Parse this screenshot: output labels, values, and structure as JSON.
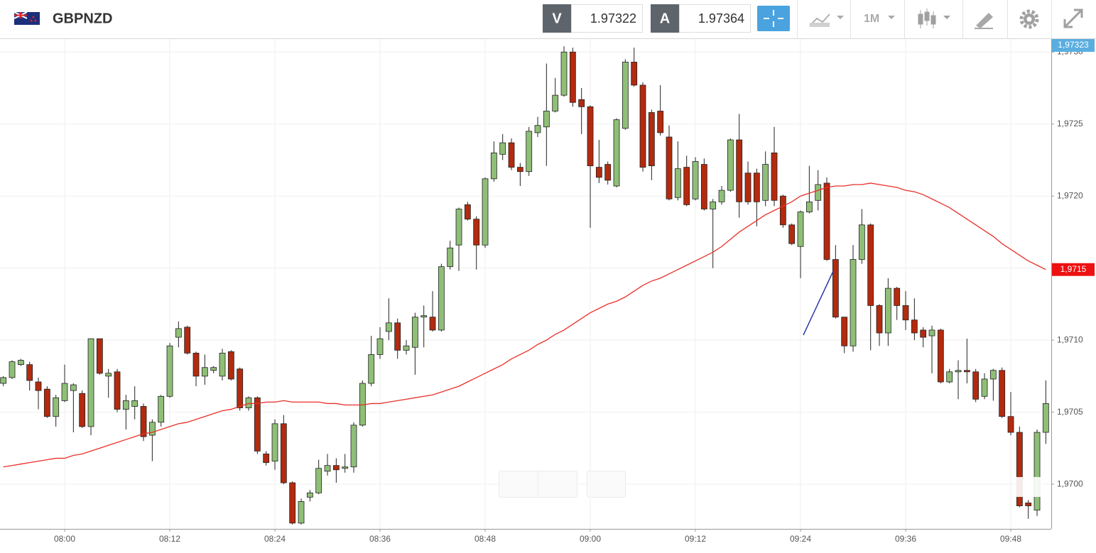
{
  "header": {
    "symbol": "GBPNZD",
    "sell_label": "V",
    "sell_price": "1.97322",
    "buy_label": "A",
    "buy_price": "1.97364",
    "timeframe": "1M"
  },
  "chart_data": {
    "type": "candlestick",
    "x": [
      "07:53",
      "07:54",
      "07:55",
      "07:56",
      "07:57",
      "07:58",
      "07:59",
      "08:00",
      "08:01",
      "08:02",
      "08:03",
      "08:04",
      "08:05",
      "08:06",
      "08:07",
      "08:08",
      "08:09",
      "08:10",
      "08:11",
      "08:12",
      "08:13",
      "08:14",
      "08:15",
      "08:16",
      "08:17",
      "08:18",
      "08:19",
      "08:20",
      "08:21",
      "08:22",
      "08:23",
      "08:24",
      "08:25",
      "08:26",
      "08:27",
      "08:28",
      "08:29",
      "08:30",
      "08:31",
      "08:32",
      "08:33",
      "08:34",
      "08:35",
      "08:36",
      "08:37",
      "08:38",
      "08:39",
      "08:40",
      "08:41",
      "08:42",
      "08:43",
      "08:44",
      "08:45",
      "08:46",
      "08:47",
      "08:48",
      "08:49",
      "08:50",
      "08:51",
      "08:52",
      "08:53",
      "08:54",
      "08:55",
      "08:56",
      "08:57",
      "08:58",
      "08:59",
      "09:00",
      "09:01",
      "09:02",
      "09:03",
      "09:04",
      "09:05",
      "09:06",
      "09:07",
      "09:08",
      "09:09",
      "09:10",
      "09:11",
      "09:12",
      "09:13",
      "09:14",
      "09:15",
      "09:16",
      "09:17",
      "09:18",
      "09:19",
      "09:20",
      "09:21",
      "09:22",
      "09:23",
      "09:24",
      "09:25",
      "09:26",
      "09:27",
      "09:28",
      "09:29",
      "09:30",
      "09:31",
      "09:32",
      "09:33",
      "09:34",
      "09:35",
      "09:36",
      "09:37",
      "09:38",
      "09:39",
      "09:40",
      "09:41",
      "09:42",
      "09:43",
      "09:44",
      "09:45",
      "09:46",
      "09:47",
      "09:48",
      "09:49",
      "09:50",
      "09:51",
      "09:52"
    ],
    "open": [
      1.9707,
      1.97074,
      1.97083,
      1.97083,
      1.97071,
      1.97066,
      1.97047,
      1.97058,
      1.97065,
      1.97063,
      1.9704,
      1.97101,
      1.97075,
      1.97078,
      1.97052,
      1.97054,
      1.97054,
      1.97034,
      1.97043,
      1.97061,
      1.97102,
      1.97109,
      1.97091,
      1.97075,
      1.97079,
      1.97075,
      1.97092,
      1.9708,
      1.97053,
      1.9706,
      1.97021,
      1.97016,
      1.97042,
      1.97001,
      1.96973,
      1.96991,
      1.96994,
      1.97009,
      1.97013,
      1.97011,
      1.97012,
      1.97041,
      1.9707,
      1.9709,
      1.97106,
      1.97112,
      1.97093,
      1.97095,
      1.97116,
      1.97116,
      1.97107,
      1.97151,
      1.97166,
      1.97194,
      1.97184,
      1.97166,
      1.97212,
      1.97229,
      1.97237,
      1.9722,
      1.97217,
      1.97244,
      1.97248,
      1.97259,
      1.9727,
      1.973,
      1.97267,
      1.97262,
      1.9722,
      1.97222,
      1.97207,
      1.97247,
      1.97293,
      1.97277,
      1.97258,
      1.97259,
      1.97241,
      1.97199,
      1.9722,
      1.97198,
      1.97222,
      1.97191,
      1.97196,
      1.97204,
      1.97239,
      1.97216,
      1.97216,
      1.97197,
      1.9723,
      1.972,
      1.9718,
      1.97165,
      1.97189,
      1.97197,
      1.97209,
      1.97156,
      1.97116,
      1.97096,
      1.97156,
      1.9718,
      1.97124,
      1.97105,
      1.97136,
      1.97124,
      1.97114,
      1.97107,
      1.97103,
      1.97107,
      1.97071,
      1.97078,
      1.97079,
      1.97078,
      1.97061,
      1.97073,
      1.97079,
      1.97047,
      1.97036,
      1.96987,
      1.96982,
      1.97036
    ],
    "high": [
      1.97075,
      1.97086,
      1.97087,
      1.97085,
      1.97074,
      1.97068,
      1.97062,
      1.97083,
      1.9707,
      1.97065,
      1.97101,
      1.97101,
      1.9708,
      1.9708,
      1.97062,
      1.97068,
      1.97056,
      1.97045,
      1.97062,
      1.97098,
      1.97113,
      1.9711,
      1.97092,
      1.9709,
      1.97082,
      1.97094,
      1.97093,
      1.97081,
      1.97061,
      1.97061,
      1.97023,
      1.97045,
      1.97048,
      1.97002,
      1.9699,
      1.96996,
      1.97017,
      1.97021,
      1.97018,
      1.97021,
      1.97043,
      1.97072,
      1.97103,
      1.97109,
      1.97129,
      1.97115,
      1.971,
      1.97119,
      1.97124,
      1.97134,
      1.97153,
      1.97169,
      1.97192,
      1.97196,
      1.97186,
      1.97213,
      1.97238,
      1.97243,
      1.9724,
      1.97223,
      1.97248,
      1.97255,
      1.97292,
      1.97282,
      1.97304,
      1.97303,
      1.97275,
      1.97263,
      1.97239,
      1.97224,
      1.97254,
      1.97295,
      1.97303,
      1.97279,
      1.9726,
      1.97277,
      1.97249,
      1.97238,
      1.97228,
      1.97227,
      1.97226,
      1.97198,
      1.97207,
      1.9724,
      1.97257,
      1.97224,
      1.97219,
      1.97231,
      1.97248,
      1.97201,
      1.97181,
      1.9719,
      1.97221,
      1.97218,
      1.97213,
      1.97166,
      1.97116,
      1.97166,
      1.97191,
      1.97181,
      1.97125,
      1.97143,
      1.97137,
      1.97134,
      1.97129,
      1.97109,
      1.9711,
      1.97108,
      1.9708,
      1.97086,
      1.97101,
      1.9708,
      1.97077,
      1.9708,
      1.97081,
      1.97064,
      1.9704,
      1.96989,
      1.97038,
      1.97072
    ],
    "low": [
      1.97068,
      1.97073,
      1.97082,
      1.97065,
      1.97052,
      1.97046,
      1.9704,
      1.97057,
      1.97036,
      1.97039,
      1.97034,
      1.97076,
      1.9706,
      1.9705,
      1.97038,
      1.97045,
      1.9703,
      1.97016,
      1.9704,
      1.9706,
      1.97095,
      1.9709,
      1.97068,
      1.97069,
      1.97077,
      1.97072,
      1.97072,
      1.97051,
      1.97051,
      1.97021,
      1.97013,
      1.9701,
      1.97,
      1.96972,
      1.96972,
      1.96988,
      1.96993,
      1.97006,
      1.97001,
      1.97008,
      1.97008,
      1.9704,
      1.97068,
      1.97087,
      1.971,
      1.97087,
      1.9709,
      1.97076,
      1.97095,
      1.97106,
      1.97106,
      1.97149,
      1.97148,
      1.97183,
      1.97149,
      1.97164,
      1.9721,
      1.97225,
      1.97218,
      1.97207,
      1.97214,
      1.97241,
      1.97221,
      1.97258,
      1.97269,
      1.97262,
      1.97243,
      1.97178,
      1.97209,
      1.97208,
      1.97206,
      1.97246,
      1.97276,
      1.97217,
      1.97211,
      1.97242,
      1.97197,
      1.97197,
      1.97193,
      1.97197,
      1.9719,
      1.9715,
      1.97194,
      1.97203,
      1.97185,
      1.97194,
      1.97179,
      1.97193,
      1.97193,
      1.97178,
      1.97166,
      1.97143,
      1.97188,
      1.9719,
      1.97155,
      1.97115,
      1.97091,
      1.97092,
      1.97153,
      1.97093,
      1.97096,
      1.97096,
      1.97114,
      1.97107,
      1.971,
      1.97095,
      1.97077,
      1.9707,
      1.9707,
      1.97059,
      1.9707,
      1.97057,
      1.97059,
      1.97058,
      1.97046,
      1.97034,
      1.96984,
      1.96976,
      1.96978,
      1.97028
    ],
    "close": [
      1.97074,
      1.97085,
      1.97086,
      1.97072,
      1.97065,
      1.97047,
      1.9706,
      1.9707,
      1.97069,
      1.9704,
      1.97101,
      1.97077,
      1.97077,
      1.97052,
      1.97058,
      1.97058,
      1.97033,
      1.97043,
      1.97061,
      1.97096,
      1.97108,
      1.97091,
      1.97075,
      1.97081,
      1.97081,
      1.97091,
      1.97073,
      1.97053,
      1.9706,
      1.97023,
      1.97015,
      1.97042,
      1.97001,
      1.96973,
      1.96988,
      1.96994,
      1.97011,
      1.97013,
      1.9701,
      1.97012,
      1.97041,
      1.9707,
      1.9709,
      1.97101,
      1.97112,
      1.97093,
      1.97096,
      1.97116,
      1.97117,
      1.97107,
      1.97151,
      1.97164,
      1.97191,
      1.97184,
      1.97166,
      1.97212,
      1.9723,
      1.97237,
      1.9722,
      1.97217,
      1.97245,
      1.97249,
      1.97259,
      1.9727,
      1.973,
      1.97265,
      1.97262,
      1.97221,
      1.97213,
      1.97211,
      1.97253,
      1.97293,
      1.97277,
      1.9722,
      1.97221,
      1.97244,
      1.97198,
      1.97219,
      1.97194,
      1.97224,
      1.97191,
      1.97196,
      1.97204,
      1.97239,
      1.97196,
      1.97196,
      1.97196,
      1.97222,
      1.97197,
      1.9718,
      1.97167,
      1.97189,
      1.97196,
      1.97208,
      1.97156,
      1.97116,
      1.97096,
      1.97156,
      1.9718,
      1.97124,
      1.97105,
      1.97136,
      1.97124,
      1.97114,
      1.97105,
      1.97102,
      1.97107,
      1.97071,
      1.97078,
      1.97079,
      1.97078,
      1.97059,
      1.97073,
      1.97079,
      1.97047,
      1.97036,
      1.96985,
      1.96985,
      1.97036,
      1.97056
    ],
    "up_color": "#8fbf77",
    "down_color": "#b32a0e",
    "overlay_line": {
      "color": "#e8302a",
      "values": [
        1.97012,
        1.97013,
        1.97014,
        1.97015,
        1.97016,
        1.97017,
        1.97018,
        1.97018,
        1.9702,
        1.97021,
        1.97023,
        1.97025,
        1.97027,
        1.97029,
        1.97031,
        1.97033,
        1.97035,
        1.97036,
        1.97038,
        1.9704,
        1.97042,
        1.97043,
        1.97045,
        1.97047,
        1.97049,
        1.97051,
        1.97052,
        1.97054,
        1.97056,
        1.97056,
        1.97057,
        1.97057,
        1.97058,
        1.97057,
        1.97057,
        1.97057,
        1.97057,
        1.97056,
        1.97056,
        1.97055,
        1.97055,
        1.97055,
        1.97056,
        1.97056,
        1.97057,
        1.97058,
        1.97059,
        1.9706,
        1.97061,
        1.97062,
        1.97064,
        1.97066,
        1.97068,
        1.97071,
        1.97074,
        1.97077,
        1.9708,
        1.97083,
        1.97087,
        1.9709,
        1.97093,
        1.97097,
        1.971,
        1.97104,
        1.97107,
        1.97111,
        1.97115,
        1.97119,
        1.97122,
        1.97125,
        1.97127,
        1.9713,
        1.97134,
        1.97138,
        1.97141,
        1.97143,
        1.97146,
        1.97149,
        1.97152,
        1.97155,
        1.97158,
        1.97161,
        1.97165,
        1.9717,
        1.97175,
        1.97179,
        1.97183,
        1.97187,
        1.9719,
        1.97193,
        1.97196,
        1.972,
        1.97202,
        1.97204,
        1.97206,
        1.97207,
        1.97207,
        1.97208,
        1.97208,
        1.97209,
        1.97208,
        1.97207,
        1.97206,
        1.97204,
        1.97203,
        1.97201,
        1.97198,
        1.97195,
        1.97192,
        1.97188,
        1.97184,
        1.9718,
        1.97176,
        1.97172,
        1.97167,
        1.97163,
        1.97159,
        1.97155,
        1.97152,
        1.97149
      ]
    },
    "ylim": [
      1.96969,
      1.97309
    ],
    "yticks": [
      {
        "value": 1.97,
        "label": "1,9700"
      },
      {
        "value": 1.9705,
        "label": "1,9705"
      },
      {
        "value": 1.971,
        "label": "1,9710"
      },
      {
        "value": 1.9715,
        "label": "1,9715"
      },
      {
        "value": 1.972,
        "label": "1,9720"
      },
      {
        "value": 1.9725,
        "label": "1,9725"
      },
      {
        "value": 1.973,
        "label": "1,9730"
      }
    ],
    "xticks": [
      "08:00",
      "08:12",
      "08:24",
      "08:36",
      "08:48",
      "09:00",
      "09:12",
      "09:24",
      "09:36",
      "09:48"
    ],
    "grid": true,
    "price_tags": [
      {
        "value": 1.97323,
        "label": "1,97323",
        "color": "#5aaee0"
      },
      {
        "value": 1.97149,
        "label": "1,9715",
        "color": "#ee1111"
      }
    ]
  }
}
